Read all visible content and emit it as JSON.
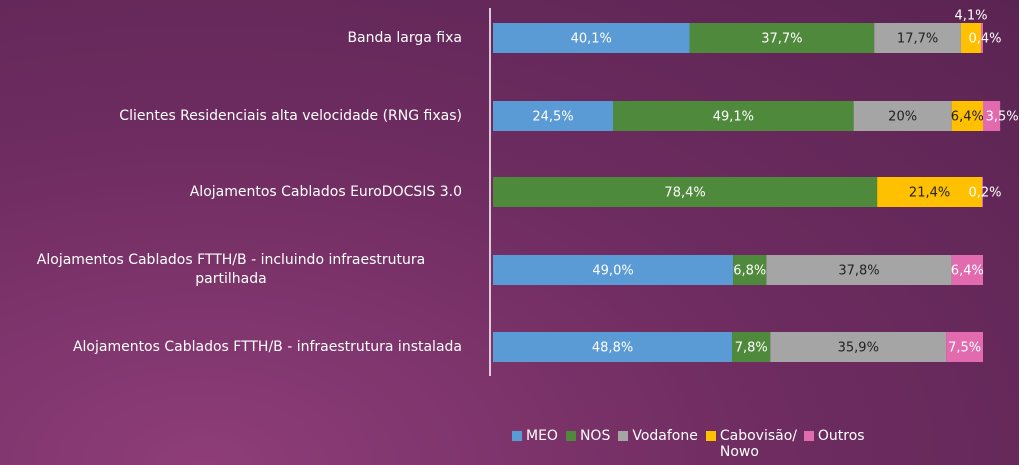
{
  "chart_data": {
    "type": "stacked-bar-horizontal",
    "categories": [
      "Banda larga fixa",
      "Clientes Residenciais alta velocidade (RNG fixas)",
      "Alojamentos Cablados EuroDOCSIS 3.0",
      "Alojamentos Cablados FTTH/B - incluindo infraestrutura partilhada",
      "Alojamentos Cablados FTTH/B - infraestrutura instalada"
    ],
    "series": [
      {
        "name": "MEO",
        "color": "#5b9bd5",
        "values": [
          40.1,
          24.5,
          null,
          49.0,
          48.8
        ],
        "value_labels": [
          "40,1%",
          "24,5%",
          null,
          "49,0%",
          "48,8%"
        ]
      },
      {
        "name": "NOS",
        "color": "#4f8a3c",
        "values": [
          37.7,
          49.1,
          78.4,
          6.8,
          7.8
        ],
        "value_labels": [
          "37,7%",
          "49,1%",
          "78,4%",
          "6,8%",
          "7,8%"
        ]
      },
      {
        "name": "Vodafone",
        "color": "#a5a5a5",
        "values": [
          17.7,
          20,
          null,
          37.8,
          35.9
        ],
        "value_labels": [
          "17,7%",
          "20%",
          null,
          "37,8%",
          "35,9%"
        ]
      },
      {
        "name": "Cabovisão/ Nowo",
        "color": "#ffc000",
        "values": [
          4.1,
          6.4,
          21.4,
          null,
          null
        ],
        "value_labels": [
          "4,1%",
          "6,4%",
          "21,4%",
          null,
          null
        ]
      },
      {
        "name": "Outros",
        "color": "#e26bb0",
        "values": [
          0.4,
          3.5,
          0.2,
          6.4,
          7.5
        ],
        "value_labels": [
          "0,4%",
          "3,5%",
          "0,2%",
          "6,4%",
          "7,5%"
        ]
      }
    ]
  }
}
